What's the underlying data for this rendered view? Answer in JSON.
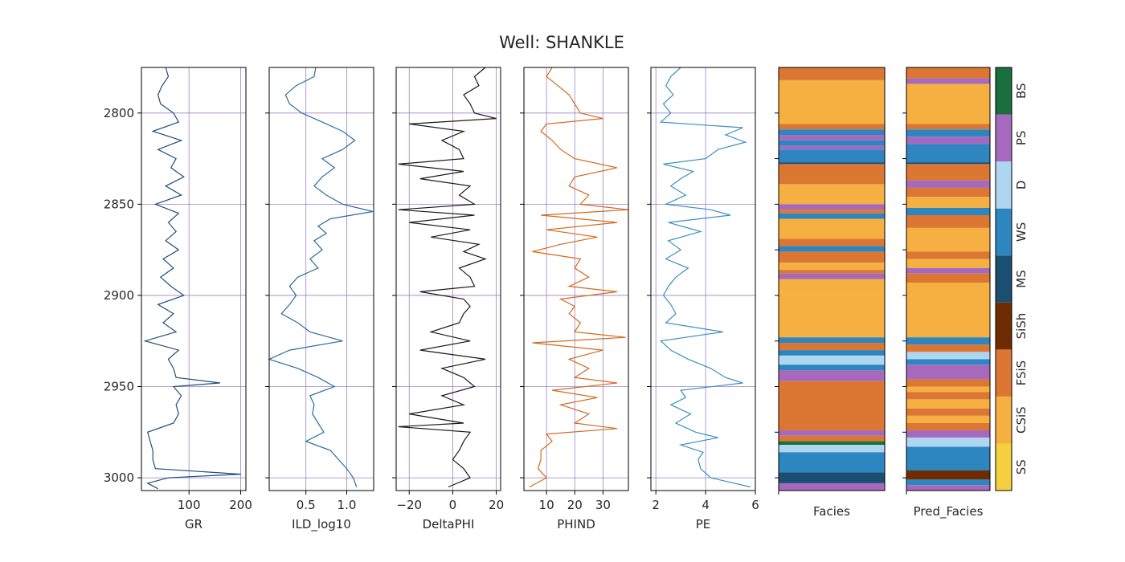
{
  "figure_title": "Well: SHANKLE",
  "chart_data": [
    {
      "type": "line",
      "panel_id": "GR",
      "xlabel": "GR",
      "color": "#1f4e79",
      "xlim": [
        8,
        210
      ],
      "xticks": [
        100,
        200
      ],
      "xticklabels": [
        "100",
        "200"
      ],
      "ylim": [
        3007,
        2775
      ],
      "yticks": [
        2800,
        2850,
        2900,
        2950,
        3000
      ],
      "yticklabels": [
        "2800",
        "2850",
        "2900",
        "2950",
        "3000"
      ],
      "grid": true,
      "series": [
        {
          "depth": [
            2775,
            2780,
            2785,
            2790,
            2795,
            2800,
            2805,
            2810,
            2815,
            2820,
            2825,
            2830,
            2835,
            2840,
            2845,
            2850,
            2855,
            2860,
            2865,
            2870,
            2875,
            2880,
            2885,
            2890,
            2895,
            2900,
            2905,
            2910,
            2915,
            2920,
            2925,
            2930,
            2935,
            2940,
            2945,
            2948,
            2950,
            2955,
            2960,
            2965,
            2970,
            2975,
            2980,
            2985,
            2990,
            2995,
            2998,
            3000,
            3003,
            3006
          ],
          "values": [
            55,
            60,
            48,
            40,
            45,
            70,
            80,
            30,
            85,
            40,
            75,
            65,
            90,
            55,
            85,
            35,
            80,
            60,
            75,
            55,
            80,
            50,
            70,
            45,
            65,
            90,
            40,
            70,
            50,
            75,
            15,
            80,
            60,
            70,
            75,
            160,
            70,
            85,
            75,
            80,
            70,
            20,
            25,
            30,
            30,
            35,
            200,
            60,
            20,
            40
          ]
        }
      ]
    },
    {
      "type": "line",
      "panel_id": "ILD",
      "xlabel": "ILD_log10",
      "color": "#2a6d9e",
      "xlim": [
        0.05,
        1.33
      ],
      "xticks": [
        0.5,
        1.0
      ],
      "xticklabels": [
        "0.5",
        "1.0"
      ],
      "ylim": [
        3007,
        2775
      ],
      "yticks": [
        2800,
        2850,
        2900,
        2950,
        3000
      ],
      "yticklabels": [
        "",
        "",
        "",
        "",
        ""
      ],
      "grid": true,
      "series": [
        {
          "depth": [
            2775,
            2780,
            2785,
            2790,
            2795,
            2800,
            2805,
            2810,
            2815,
            2820,
            2825,
            2830,
            2835,
            2840,
            2845,
            2850,
            2854,
            2858,
            2862,
            2866,
            2870,
            2875,
            2880,
            2885,
            2890,
            2895,
            2900,
            2905,
            2910,
            2915,
            2920,
            2925,
            2930,
            2935,
            2940,
            2945,
            2950,
            2955,
            2960,
            2965,
            2970,
            2975,
            2980,
            2985,
            2990,
            2995,
            3000,
            3005
          ],
          "values": [
            0.62,
            0.6,
            0.38,
            0.25,
            0.3,
            0.45,
            0.7,
            0.95,
            1.1,
            0.95,
            0.7,
            0.85,
            0.7,
            0.6,
            0.75,
            0.95,
            1.32,
            0.8,
            0.65,
            0.75,
            0.6,
            0.7,
            0.55,
            0.65,
            0.4,
            0.3,
            0.38,
            0.3,
            0.2,
            0.4,
            0.55,
            0.95,
            0.3,
            0.05,
            0.4,
            0.65,
            0.85,
            0.55,
            0.6,
            0.58,
            0.65,
            0.72,
            0.5,
            0.8,
            0.9,
            1.0,
            1.08,
            1.12
          ]
        }
      ]
    },
    {
      "type": "line",
      "panel_id": "DPHI",
      "xlabel": "DeltaPHI",
      "color": "#1a1a1a",
      "xlim": [
        -26,
        22
      ],
      "xticks": [
        -20,
        0,
        20
      ],
      "xticklabels": [
        "−20",
        "0",
        "20"
      ],
      "ylim": [
        3007,
        2775
      ],
      "yticks": [
        2800,
        2850,
        2900,
        2950,
        3000
      ],
      "yticklabels": [
        "",
        "",
        "",
        "",
        ""
      ],
      "grid": true,
      "series": [
        {
          "depth": [
            2775,
            2780,
            2785,
            2790,
            2795,
            2800,
            2803,
            2806,
            2810,
            2815,
            2820,
            2825,
            2828,
            2832,
            2836,
            2840,
            2845,
            2850,
            2853,
            2856,
            2860,
            2864,
            2868,
            2872,
            2876,
            2880,
            2885,
            2890,
            2895,
            2898,
            2902,
            2906,
            2910,
            2915,
            2920,
            2925,
            2930,
            2935,
            2940,
            2945,
            2950,
            2955,
            2960,
            2965,
            2970,
            2972,
            2975,
            2980,
            2985,
            2990,
            2995,
            3000,
            3005
          ],
          "values": [
            15,
            10,
            12,
            5,
            8,
            10,
            20,
            -20,
            5,
            -5,
            3,
            5,
            -25,
            5,
            -15,
            8,
            3,
            10,
            -25,
            10,
            -20,
            8,
            -10,
            12,
            5,
            15,
            3,
            8,
            10,
            -15,
            5,
            8,
            5,
            3,
            -10,
            8,
            -15,
            15,
            -5,
            5,
            10,
            -5,
            5,
            -20,
            5,
            -25,
            8,
            5,
            3,
            0,
            5,
            8,
            -2
          ]
        }
      ]
    },
    {
      "type": "line",
      "panel_id": "PHIND",
      "xlabel": "PHIND",
      "color": "#d4691e",
      "xlim": [
        2,
        39
      ],
      "xticks": [
        10,
        20,
        30
      ],
      "xticklabels": [
        "10",
        "20",
        "30"
      ],
      "ylim": [
        3007,
        2775
      ],
      "yticks": [
        2800,
        2850,
        2900,
        2950,
        3000
      ],
      "yticklabels": [
        "",
        "",
        "",
        "",
        ""
      ],
      "grid": true,
      "series": [
        {
          "depth": [
            2775,
            2780,
            2785,
            2790,
            2795,
            2800,
            2803,
            2806,
            2810,
            2815,
            2820,
            2825,
            2830,
            2835,
            2840,
            2845,
            2850,
            2853,
            2856,
            2860,
            2864,
            2868,
            2872,
            2876,
            2880,
            2885,
            2890,
            2895,
            2898,
            2902,
            2906,
            2910,
            2915,
            2920,
            2923,
            2926,
            2930,
            2935,
            2940,
            2945,
            2948,
            2952,
            2956,
            2960,
            2965,
            2970,
            2973,
            2976,
            2980,
            2985,
            2990,
            2995,
            3000,
            3005
          ],
          "values": [
            12,
            10,
            14,
            18,
            20,
            22,
            30,
            10,
            8,
            12,
            15,
            20,
            35,
            20,
            18,
            25,
            22,
            40,
            8,
            35,
            10,
            28,
            15,
            5,
            22,
            20,
            25,
            18,
            35,
            15,
            20,
            18,
            22,
            20,
            38,
            5,
            30,
            18,
            25,
            20,
            35,
            12,
            28,
            15,
            25,
            20,
            35,
            10,
            12,
            8,
            8,
            7,
            10,
            4
          ]
        }
      ]
    },
    {
      "type": "line",
      "panel_id": "PE",
      "xlabel": "PE",
      "color": "#3b8fc0",
      "xlim": [
        1.8,
        6.0
      ],
      "xticks": [
        2,
        4,
        6
      ],
      "xticklabels": [
        "2",
        "4",
        "6"
      ],
      "ylim": [
        3007,
        2775
      ],
      "yticks": [
        2800,
        2850,
        2900,
        2950,
        3000
      ],
      "yticklabels": [
        "",
        "",
        "",
        "",
        ""
      ],
      "grid": true,
      "series": [
        {
          "depth": [
            2775,
            2780,
            2785,
            2790,
            2795,
            2800,
            2805,
            2808,
            2812,
            2816,
            2820,
            2825,
            2828,
            2832,
            2836,
            2840,
            2845,
            2850,
            2853,
            2856,
            2860,
            2865,
            2870,
            2875,
            2880,
            2885,
            2890,
            2895,
            2900,
            2905,
            2910,
            2915,
            2920,
            2925,
            2930,
            2935,
            2940,
            2945,
            2948,
            2952,
            2956,
            2960,
            2965,
            2970,
            2975,
            2978,
            2982,
            2986,
            2990,
            2995,
            3000,
            3005
          ],
          "values": [
            3.0,
            2.6,
            2.4,
            2.7,
            2.3,
            2.6,
            2.2,
            5.5,
            4.8,
            5.6,
            4.5,
            4.0,
            2.3,
            3.5,
            3.0,
            2.6,
            3.2,
            2.4,
            4.2,
            5.0,
            2.5,
            3.8,
            2.5,
            3.0,
            2.4,
            3.3,
            2.8,
            2.5,
            2.3,
            2.6,
            2.8,
            2.4,
            4.7,
            2.2,
            2.6,
            3.3,
            4.2,
            4.8,
            5.5,
            3.0,
            3.2,
            2.6,
            3.4,
            2.8,
            3.6,
            4.5,
            3.0,
            3.9,
            3.7,
            3.8,
            4.2,
            5.8
          ]
        }
      ]
    }
  ],
  "facies": {
    "xlabels": [
      "Facies",
      "Pred_Facies"
    ],
    "codes": [
      "SS",
      "CSiS",
      "FSiS",
      "SiSh",
      "MS",
      "WS",
      "D",
      "PS",
      "BS"
    ],
    "colors": [
      "#F4D03F",
      "#F5B041",
      "#DC7633",
      "#6E2C00",
      "#1B4F72",
      "#2E86C1",
      "#AED6F1",
      "#A569BD",
      "#196F3D"
    ],
    "actual_intervals": [
      {
        "top": 2775,
        "bottom": 2782,
        "code": "FSiS"
      },
      {
        "top": 2782,
        "bottom": 2806,
        "code": "CSiS"
      },
      {
        "top": 2806,
        "bottom": 2809,
        "code": "FSiS"
      },
      {
        "top": 2809,
        "bottom": 2812,
        "code": "WS"
      },
      {
        "top": 2812,
        "bottom": 2815,
        "code": "PS"
      },
      {
        "top": 2815,
        "bottom": 2818,
        "code": "WS"
      },
      {
        "top": 2818,
        "bottom": 2820,
        "code": "PS"
      },
      {
        "top": 2820,
        "bottom": 2827,
        "code": "WS"
      },
      {
        "top": 2827,
        "bottom": 2828,
        "code": "MS"
      },
      {
        "top": 2828,
        "bottom": 2839,
        "code": "FSiS"
      },
      {
        "top": 2839,
        "bottom": 2850,
        "code": "CSiS"
      },
      {
        "top": 2850,
        "bottom": 2853,
        "code": "PS"
      },
      {
        "top": 2853,
        "bottom": 2855,
        "code": "FSiS"
      },
      {
        "top": 2855,
        "bottom": 2858,
        "code": "WS"
      },
      {
        "top": 2858,
        "bottom": 2869,
        "code": "CSiS"
      },
      {
        "top": 2869,
        "bottom": 2873,
        "code": "FSiS"
      },
      {
        "top": 2873,
        "bottom": 2876,
        "code": "WS"
      },
      {
        "top": 2876,
        "bottom": 2882,
        "code": "FSiS"
      },
      {
        "top": 2882,
        "bottom": 2886,
        "code": "CSiS"
      },
      {
        "top": 2886,
        "bottom": 2888,
        "code": "FSiS"
      },
      {
        "top": 2888,
        "bottom": 2891,
        "code": "PS"
      },
      {
        "top": 2891,
        "bottom": 2900,
        "code": "CSiS"
      },
      {
        "top": 2900,
        "bottom": 2923,
        "code": "CSiS"
      },
      {
        "top": 2923,
        "bottom": 2926,
        "code": "WS"
      },
      {
        "top": 2926,
        "bottom": 2930,
        "code": "FSiS"
      },
      {
        "top": 2930,
        "bottom": 2933,
        "code": "WS"
      },
      {
        "top": 2933,
        "bottom": 2938,
        "code": "D"
      },
      {
        "top": 2938,
        "bottom": 2941,
        "code": "WS"
      },
      {
        "top": 2941,
        "bottom": 2947,
        "code": "PS"
      },
      {
        "top": 2947,
        "bottom": 2974,
        "code": "FSiS"
      },
      {
        "top": 2974,
        "bottom": 2977,
        "code": "PS"
      },
      {
        "top": 2977,
        "bottom": 2980,
        "code": "FSiS"
      },
      {
        "top": 2980,
        "bottom": 2982,
        "code": "BS"
      },
      {
        "top": 2982,
        "bottom": 2986,
        "code": "D"
      },
      {
        "top": 2986,
        "bottom": 2997,
        "code": "WS"
      },
      {
        "top": 2997,
        "bottom": 3003,
        "code": "MS"
      },
      {
        "top": 3003,
        "bottom": 3007,
        "code": "PS"
      }
    ],
    "pred_intervals": [
      {
        "top": 2775,
        "bottom": 2781,
        "code": "FSiS"
      },
      {
        "top": 2781,
        "bottom": 2784,
        "code": "PS"
      },
      {
        "top": 2784,
        "bottom": 2806,
        "code": "CSiS"
      },
      {
        "top": 2806,
        "bottom": 2809,
        "code": "FSiS"
      },
      {
        "top": 2809,
        "bottom": 2813,
        "code": "WS"
      },
      {
        "top": 2813,
        "bottom": 2817,
        "code": "PS"
      },
      {
        "top": 2817,
        "bottom": 2827,
        "code": "WS"
      },
      {
        "top": 2827,
        "bottom": 2828,
        "code": "MS"
      },
      {
        "top": 2828,
        "bottom": 2837,
        "code": "FSiS"
      },
      {
        "top": 2837,
        "bottom": 2841,
        "code": "PS"
      },
      {
        "top": 2841,
        "bottom": 2846,
        "code": "FSiS"
      },
      {
        "top": 2846,
        "bottom": 2852,
        "code": "CSiS"
      },
      {
        "top": 2852,
        "bottom": 2856,
        "code": "WS"
      },
      {
        "top": 2856,
        "bottom": 2863,
        "code": "FSiS"
      },
      {
        "top": 2863,
        "bottom": 2876,
        "code": "CSiS"
      },
      {
        "top": 2876,
        "bottom": 2880,
        "code": "FSiS"
      },
      {
        "top": 2880,
        "bottom": 2885,
        "code": "CSiS"
      },
      {
        "top": 2885,
        "bottom": 2888,
        "code": "PS"
      },
      {
        "top": 2888,
        "bottom": 2893,
        "code": "FSiS"
      },
      {
        "top": 2893,
        "bottom": 2923,
        "code": "CSiS"
      },
      {
        "top": 2923,
        "bottom": 2927,
        "code": "WS"
      },
      {
        "top": 2927,
        "bottom": 2931,
        "code": "FSiS"
      },
      {
        "top": 2931,
        "bottom": 2935,
        "code": "D"
      },
      {
        "top": 2935,
        "bottom": 2938,
        "code": "WS"
      },
      {
        "top": 2938,
        "bottom": 2946,
        "code": "PS"
      },
      {
        "top": 2946,
        "bottom": 2950,
        "code": "FSiS"
      },
      {
        "top": 2950,
        "bottom": 2953,
        "code": "CSiS"
      },
      {
        "top": 2953,
        "bottom": 2957,
        "code": "FSiS"
      },
      {
        "top": 2957,
        "bottom": 2962,
        "code": "CSiS"
      },
      {
        "top": 2962,
        "bottom": 2966,
        "code": "FSiS"
      },
      {
        "top": 2966,
        "bottom": 2970,
        "code": "CSiS"
      },
      {
        "top": 2970,
        "bottom": 2974,
        "code": "FSiS"
      },
      {
        "top": 2974,
        "bottom": 2978,
        "code": "PS"
      },
      {
        "top": 2978,
        "bottom": 2983,
        "code": "D"
      },
      {
        "top": 2983,
        "bottom": 2996,
        "code": "WS"
      },
      {
        "top": 2996,
        "bottom": 3001,
        "code": "SiSh"
      },
      {
        "top": 3001,
        "bottom": 3004,
        "code": "WS"
      },
      {
        "top": 3004,
        "bottom": 3007,
        "code": "PS"
      }
    ]
  }
}
